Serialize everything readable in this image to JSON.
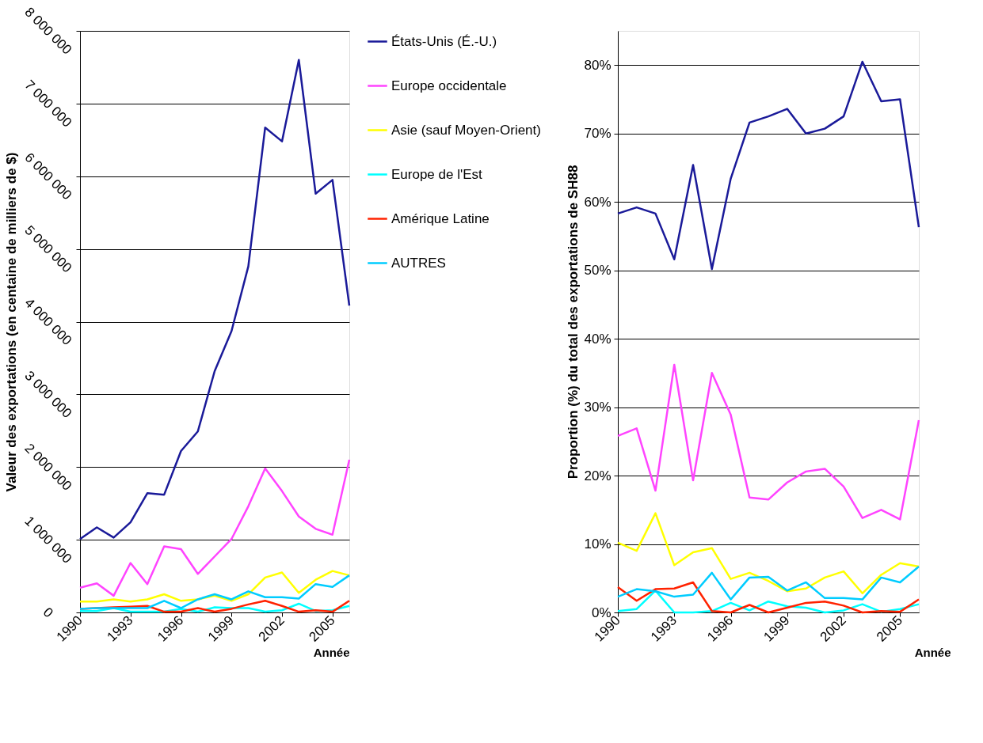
{
  "chart_data": [
    {
      "type": "line",
      "xlabel": "Année",
      "ylabel": "Valeur des exportations (en centaine de milliers de $)",
      "x": [
        1990,
        1991,
        1992,
        1993,
        1994,
        1995,
        1996,
        1997,
        1998,
        1999,
        2000,
        2001,
        2002,
        2003,
        2004,
        2005,
        2006
      ],
      "xlim": [
        1990,
        2006
      ],
      "xticks": [
        1990,
        1993,
        1996,
        1999,
        2002,
        2005
      ],
      "ylim": [
        0,
        8000000
      ],
      "yticks": [
        {
          "value": 0,
          "label": "0"
        },
        {
          "value": 1000000,
          "label": "1 000 000"
        },
        {
          "value": 2000000,
          "label": "2 000 000"
        },
        {
          "value": 3000000,
          "label": "3 000 000"
        },
        {
          "value": 4000000,
          "label": "4 000 000"
        },
        {
          "value": 5000000,
          "label": "5 000 000"
        },
        {
          "value": 6000000,
          "label": "6 000 000"
        },
        {
          "value": 7000000,
          "label": "7 000 000"
        },
        {
          "value": 8000000,
          "label": "8 000 000"
        }
      ],
      "grid": "y",
      "legend": "right",
      "marker": "none",
      "line_style": "solid",
      "series": [
        {
          "name": "États-Unis (É.-U.)",
          "color": "#1a1a99",
          "values": [
            1010000,
            1170000,
            1030000,
            1240000,
            1640000,
            1620000,
            2220000,
            2490000,
            3320000,
            3870000,
            4760000,
            6670000,
            6480000,
            7600000,
            5760000,
            5950000,
            4220000
          ]
        },
        {
          "name": "Europe occidentale",
          "color": "#ff44ff",
          "values": [
            340000,
            400000,
            230000,
            680000,
            390000,
            910000,
            870000,
            530000,
            770000,
            1010000,
            1460000,
            1980000,
            1670000,
            1320000,
            1150000,
            1070000,
            2100000
          ]
        },
        {
          "name": "Asie (sauf Moyen-Orient)",
          "color": "#ffff00",
          "values": [
            150000,
            150000,
            180000,
            150000,
            180000,
            250000,
            160000,
            180000,
            230000,
            160000,
            250000,
            480000,
            550000,
            270000,
            450000,
            570000,
            510000
          ]
        },
        {
          "name": "Europe de l'Est",
          "color": "#00ffff",
          "values": [
            20000,
            20000,
            60000,
            10000,
            10000,
            10000,
            50000,
            10000,
            70000,
            60000,
            60000,
            10000,
            30000,
            120000,
            20000,
            30000,
            90000
          ]
        },
        {
          "name": "Amérique Latine",
          "color": "#ff2200",
          "values": [
            50000,
            60000,
            70000,
            80000,
            90000,
            10000,
            10000,
            60000,
            10000,
            50000,
            110000,
            160000,
            90000,
            10000,
            30000,
            10000,
            160000
          ]
        },
        {
          "name": "AUTRES",
          "color": "#00ccff",
          "values": [
            50000,
            60000,
            60000,
            60000,
            60000,
            160000,
            60000,
            180000,
            250000,
            180000,
            290000,
            210000,
            210000,
            190000,
            390000,
            350000,
            510000
          ]
        }
      ]
    },
    {
      "type": "line",
      "xlabel": "Année",
      "ylabel": "Proportion (%) du total des exportations de SH88",
      "x": [
        1990,
        1991,
        1992,
        1993,
        1994,
        1995,
        1996,
        1997,
        1998,
        1999,
        2000,
        2001,
        2002,
        2003,
        2004,
        2005,
        2006
      ],
      "xlim": [
        1990,
        2006
      ],
      "xticks": [
        1990,
        1993,
        1996,
        1999,
        2002,
        2005
      ],
      "ylim": [
        0,
        85
      ],
      "yticks": [
        {
          "value": 0,
          "label": "0%"
        },
        {
          "value": 10,
          "label": "10%"
        },
        {
          "value": 20,
          "label": "20%"
        },
        {
          "value": 30,
          "label": "30%"
        },
        {
          "value": 40,
          "label": "40%"
        },
        {
          "value": 50,
          "label": "50%"
        },
        {
          "value": 60,
          "label": "60%"
        },
        {
          "value": 70,
          "label": "70%"
        },
        {
          "value": 80,
          "label": "80%"
        }
      ],
      "grid": "y",
      "legend": false,
      "marker": "none",
      "line_style": "solid",
      "series": [
        {
          "color": "#1a1a99",
          "values": [
            58.3,
            59.2,
            58.3,
            51.6,
            65.4,
            50.2,
            63.4,
            71.6,
            72.5,
            73.6,
            70.0,
            70.7,
            72.5,
            80.5,
            74.7,
            75.0,
            56.3
          ]
        },
        {
          "color": "#ff44ff",
          "values": [
            25.8,
            26.9,
            17.8,
            36.2,
            19.3,
            35.0,
            28.9,
            16.8,
            16.5,
            19.0,
            20.6,
            21.0,
            18.4,
            13.8,
            15.0,
            13.6,
            28.1
          ]
        },
        {
          "color": "#ffff00",
          "values": [
            10.2,
            9.0,
            14.5,
            6.9,
            8.8,
            9.4,
            4.9,
            5.8,
            4.6,
            3.1,
            3.5,
            5.1,
            6.0,
            2.8,
            5.5,
            7.2,
            6.7
          ]
        },
        {
          "color": "#00ffff",
          "values": [
            0.2,
            0.5,
            3.2,
            0,
            0,
            0.2,
            1.4,
            0.3,
            1.6,
            0.9,
            0.7,
            0,
            0.3,
            1.2,
            0.1,
            0.5,
            1.2
          ]
        },
        {
          "color": "#ff2200",
          "values": [
            3.7,
            1.7,
            3.4,
            3.5,
            4.4,
            0.2,
            0,
            1.1,
            0,
            0.7,
            1.4,
            1.6,
            1.0,
            0,
            0.2,
            0.1,
            1.9
          ]
        },
        {
          "color": "#00ccff",
          "values": [
            2.3,
            3.4,
            3.1,
            2.3,
            2.6,
            5.8,
            1.9,
            5.1,
            5.2,
            3.2,
            4.4,
            2.1,
            2.1,
            1.9,
            5.1,
            4.4,
            6.7
          ]
        }
      ]
    }
  ]
}
